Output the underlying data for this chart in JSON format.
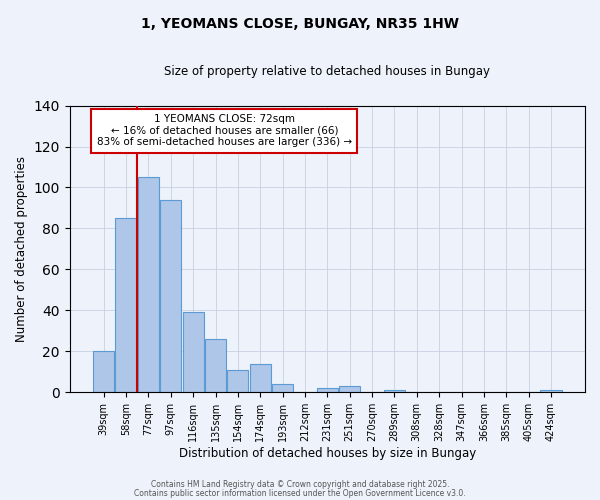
{
  "title": "1, YEOMANS CLOSE, BUNGAY, NR35 1HW",
  "subtitle": "Size of property relative to detached houses in Bungay",
  "xlabel": "Distribution of detached houses by size in Bungay",
  "ylabel": "Number of detached properties",
  "bar_labels": [
    "39sqm",
    "58sqm",
    "77sqm",
    "97sqm",
    "116sqm",
    "135sqm",
    "154sqm",
    "174sqm",
    "193sqm",
    "212sqm",
    "231sqm",
    "251sqm",
    "270sqm",
    "289sqm",
    "308sqm",
    "328sqm",
    "347sqm",
    "366sqm",
    "385sqm",
    "405sqm",
    "424sqm"
  ],
  "bar_values": [
    20,
    85,
    105,
    94,
    39,
    26,
    11,
    14,
    4,
    0,
    2,
    3,
    0,
    1,
    0,
    0,
    0,
    0,
    0,
    0,
    1
  ],
  "bar_color": "#aec6e8",
  "bar_edgecolor": "#5b9bd5",
  "background_color": "#eef2fa",
  "ylim": [
    0,
    140
  ],
  "yticks": [
    0,
    20,
    40,
    60,
    80,
    100,
    120,
    140
  ],
  "vline_x_idx": 2,
  "vline_color": "#cc0000",
  "annotation_title": "1 YEOMANS CLOSE: 72sqm",
  "annotation_line1": "← 16% of detached houses are smaller (66)",
  "annotation_line2": "83% of semi-detached houses are larger (336) →",
  "annotation_box_color": "#ffffff",
  "annotation_box_edgecolor": "#cc0000",
  "footer1": "Contains HM Land Registry data © Crown copyright and database right 2025.",
  "footer2": "Contains public sector information licensed under the Open Government Licence v3.0.",
  "grid_color": "#c8d0e0"
}
